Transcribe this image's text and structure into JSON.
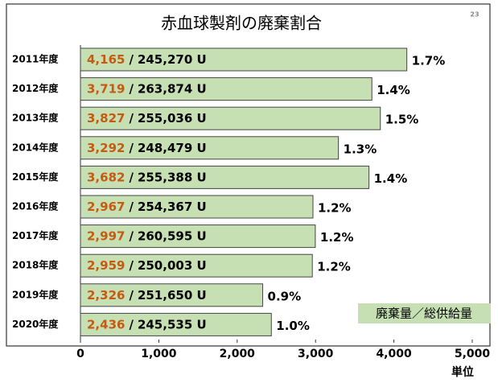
{
  "chart_data": {
    "type": "bar",
    "orientation": "horizontal",
    "title": "赤血球製剤の廃棄割合",
    "page_number": "23",
    "categories": [
      "2011年度",
      "2012年度",
      "2013年度",
      "2014年度",
      "2015年度",
      "2016年度",
      "2017年度",
      "2018年度",
      "2019年度",
      "2020年度"
    ],
    "values": [
      4165,
      3719,
      3827,
      3292,
      3682,
      2967,
      2997,
      2959,
      2326,
      2436
    ],
    "value_labels": [
      "4,165",
      "3,719",
      "3,827",
      "3,292",
      "3,682",
      "2,967",
      "2,997",
      "2,959",
      "2,326",
      "2,436"
    ],
    "label_separator": "/",
    "supply_labels": [
      "245,270 U",
      "263,874 U",
      "255,036 U",
      "248,479 U",
      "255,388 U",
      "254,367 U",
      "260,595 U",
      "250,003 U",
      "251,650 U",
      "245,535 U"
    ],
    "rate_labels": [
      "1.7%",
      "1.4%",
      "1.5%",
      "1.3%",
      "1.4%",
      "1.2%",
      "1.2%",
      "1.2%",
      "0.9%",
      "1.0%"
    ],
    "color": "#c6e0b4",
    "value_label_color": "#c55a11",
    "legend": "廃棄量／総供給量",
    "x_label": "単位",
    "xlim": [
      0,
      5000
    ],
    "xticks": [
      0,
      {
        "value": 1000,
        "label": "1,000"
      },
      {
        "value": 2000,
        "label": "2,000"
      },
      {
        "value": 3000,
        "label": "3,000"
      },
      {
        "value": 4000,
        "label": "4,000"
      },
      {
        "value": 5000,
        "label": "5,000"
      }
    ]
  }
}
